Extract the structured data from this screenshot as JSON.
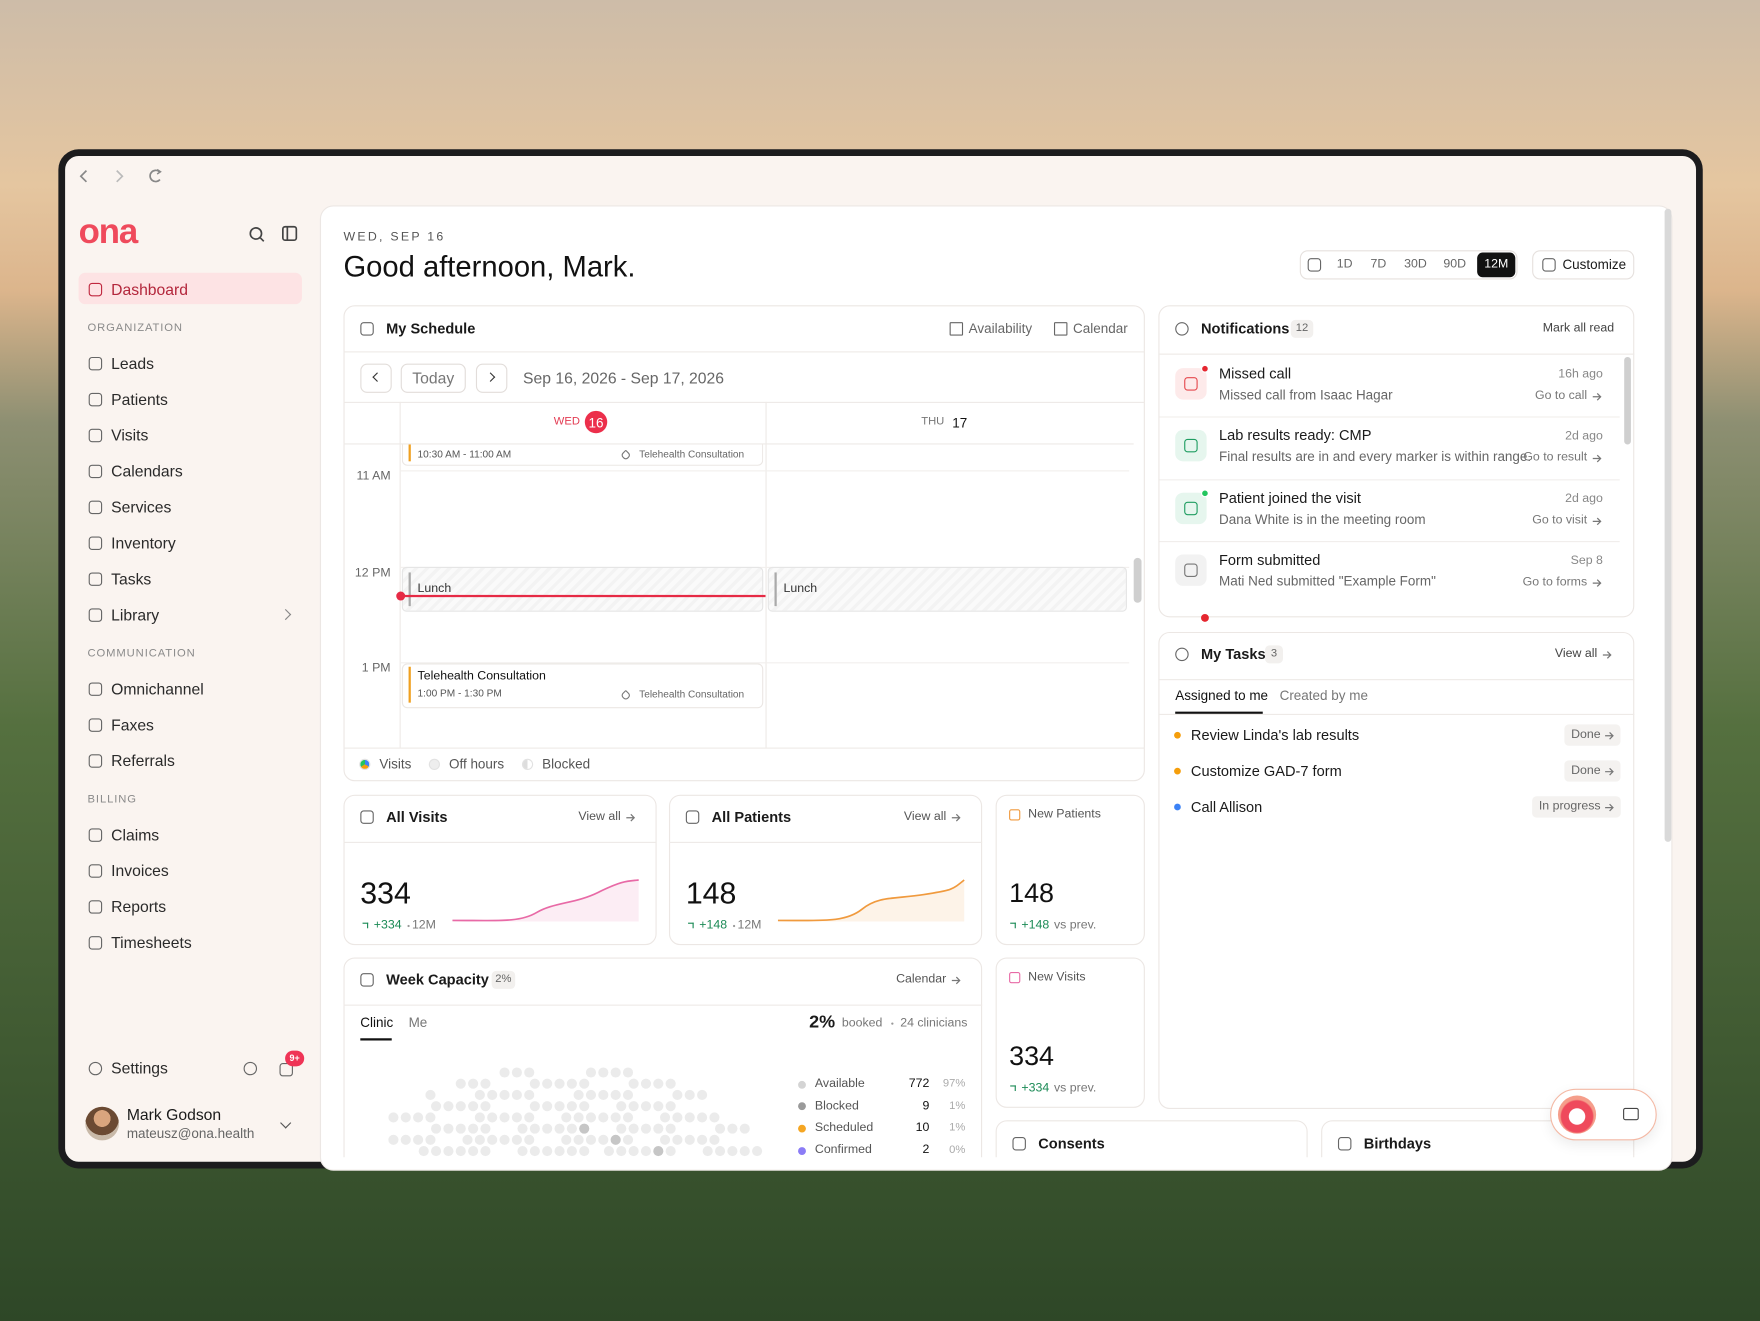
{
  "sidebar": {
    "logo": "ona",
    "dashboard": "Dashboard",
    "sections": [
      {
        "title": "ORGANIZATION",
        "items": [
          "Leads",
          "Patients",
          "Visits",
          "Calendars",
          "Services",
          "Inventory",
          "Tasks",
          "Library"
        ]
      },
      {
        "title": "COMMUNICATION",
        "items": [
          "Omnichannel",
          "Faxes",
          "Referrals"
        ]
      },
      {
        "title": "BILLING",
        "items": [
          "Claims",
          "Invoices",
          "Reports",
          "Timesheets"
        ]
      }
    ],
    "settings": "Settings",
    "badge": "9+",
    "user": {
      "name": "Mark Godson",
      "email": "mateusz@ona.health"
    }
  },
  "header": {
    "date": "WED, SEP 16",
    "greeting": "Good afternoon, Mark.",
    "ranges": [
      {
        "label": "1D"
      },
      {
        "label": "7D"
      },
      {
        "label": "30D"
      },
      {
        "label": "90D"
      },
      {
        "label": "12M",
        "active": true
      }
    ],
    "customize": "Customize"
  },
  "schedule": {
    "title": "My Schedule",
    "availability": "Availability",
    "calendar": "Calendar",
    "today": "Today",
    "range": "Sep 16, 2026 - Sep 17, 2026",
    "days": [
      {
        "weekday": "WED",
        "day": 16,
        "today": true
      },
      {
        "weekday": "THU",
        "day": 17
      }
    ],
    "hours": [
      "11 AM",
      "12 PM",
      "1 PM"
    ],
    "events": [
      {
        "time": "10:30 AM - 11:00 AM",
        "tag": "Telehealth Consultation"
      },
      {
        "title": "Lunch"
      },
      {
        "title": "Lunch"
      },
      {
        "title": "Telehealth Consultation",
        "time": "1:00 PM - 1:30 PM",
        "tag": "Telehealth Consultation"
      }
    ],
    "legend": [
      "Visits",
      "Off hours",
      "Blocked"
    ]
  },
  "notifications": {
    "title": "Notifications",
    "count": 12,
    "mark_all": "Mark all read",
    "items": [
      {
        "title": "Missed call",
        "text": "Missed call from Isaac Hagar",
        "time": "16h ago",
        "action": "Go to call",
        "color": "#e5484d",
        "bg": "#fdeaea",
        "dot": "#e5262f"
      },
      {
        "title": "Lab results ready: CMP",
        "text": "Final results are in and every marker is within range.",
        "time": "2d ago",
        "action": "Go to result",
        "color": "#1f9d61",
        "bg": "#e6f6ee"
      },
      {
        "title": "Patient joined the visit",
        "text": "Dana White is in the meeting room",
        "time": "2d ago",
        "action": "Go to visit",
        "color": "#1f9d61",
        "bg": "#e6f6ee",
        "dot": "#22c55e"
      },
      {
        "title": "Form submitted",
        "text": "Mati Ned submitted \"Example Form\"",
        "time": "Sep 8",
        "action": "Go to forms",
        "color": "#777777",
        "bg": "#f2f2f2"
      }
    ]
  },
  "tasks": {
    "title": "My Tasks",
    "count": 3,
    "view_all": "View all",
    "tabs": [
      "Assigned to me",
      "Created by me"
    ],
    "items": [
      {
        "title": "Review Linda's lab results",
        "status": "Done",
        "color": "#f59e0b"
      },
      {
        "title": "Customize GAD-7 form",
        "status": "Done",
        "color": "#f59e0b"
      },
      {
        "title": "Call Allison",
        "status": "In progress",
        "color": "#3b82f6"
      }
    ]
  },
  "all_visits": {
    "title": "All Visits",
    "view_all": "View all",
    "value": 334,
    "change": "+334",
    "period": "12M"
  },
  "all_patients": {
    "title": "All Patients",
    "view_all": "View all",
    "value": 148,
    "change": "+148",
    "period": "12M"
  },
  "new_patients": {
    "title": "New Patients",
    "value": 148,
    "change": "+148",
    "compare": "vs prev."
  },
  "new_visits": {
    "title": "New Visits",
    "value": 334,
    "change": "+334",
    "compare": "vs prev."
  },
  "week_capacity": {
    "title": "Week Capacity",
    "badge": "2%",
    "calendar": "Calendar",
    "tabs": [
      "Clinic",
      "Me"
    ],
    "booked_pct": "2%",
    "booked": "booked",
    "clinicians": "24 clinicians",
    "rows": [
      {
        "label": "Available",
        "value": 772,
        "pct": "97%",
        "color": "#d4d4d4"
      },
      {
        "label": "Blocked",
        "value": 9,
        "pct": "1%",
        "color": "#9a9a9a"
      },
      {
        "label": "Scheduled",
        "value": 10,
        "pct": "1%",
        "color": "#f5a623"
      },
      {
        "label": "Confirmed",
        "value": 2,
        "pct": "0%",
        "color": "#8b7cf6"
      }
    ]
  },
  "consents": {
    "title": "Consents"
  },
  "birthdays": {
    "title": "Birthdays"
  }
}
